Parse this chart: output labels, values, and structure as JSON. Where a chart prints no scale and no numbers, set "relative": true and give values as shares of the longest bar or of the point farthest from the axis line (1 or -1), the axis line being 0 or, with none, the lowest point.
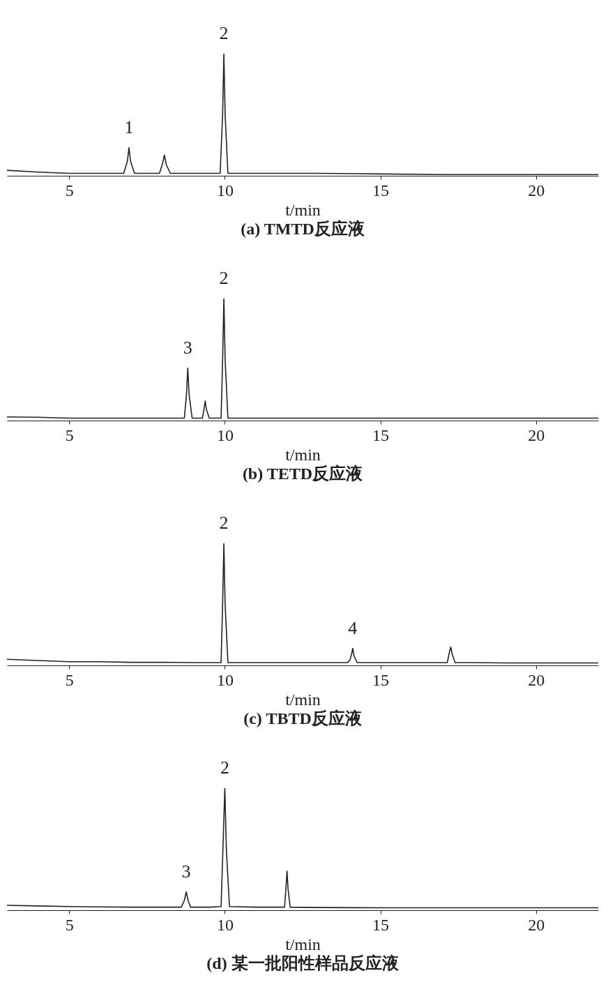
{
  "chart_data": [
    {
      "type": "line",
      "title": "(a) TMTD反应液",
      "xlabel": "t/min",
      "relative": true,
      "xlim": [
        3,
        22
      ],
      "xticks": [
        5,
        10,
        15,
        20
      ],
      "color": "#222222",
      "x": [
        3,
        4,
        5,
        6,
        6.75,
        6.87,
        6.92,
        6.97,
        7.1,
        7.5,
        7.9,
        8.0,
        8.06,
        8.12,
        8.25,
        9,
        9.85,
        9.93,
        9.97,
        10.01,
        10.1,
        11,
        13,
        15,
        17,
        19,
        21,
        22
      ],
      "values": [
        0.045,
        0.03,
        0.02,
        0.02,
        0.02,
        0.12,
        0.23,
        0.12,
        0.02,
        0.02,
        0.02,
        0.1,
        0.17,
        0.09,
        0.02,
        0.02,
        0.02,
        0.5,
        1,
        0.5,
        0.02,
        0.02,
        0.02,
        0.015,
        0.01,
        0.01,
        0.01,
        0.01
      ],
      "annotations": [
        {
          "text": "1",
          "x": 6.92,
          "y": 0.23
        },
        {
          "text": "2",
          "x": 9.97,
          "y": 1
        }
      ]
    },
    {
      "type": "line",
      "title": "(b) TETD反应液",
      "xlabel": "t/min",
      "relative": true,
      "xlim": [
        3,
        22
      ],
      "xticks": [
        5,
        10,
        15,
        20
      ],
      "color": "#222222",
      "x": [
        3,
        4,
        5,
        6,
        7,
        8,
        8.7,
        8.77,
        8.81,
        8.85,
        8.95,
        9.28,
        9.33,
        9.37,
        9.41,
        9.5,
        9.88,
        9.93,
        9.97,
        10.01,
        10.1,
        11,
        13,
        15,
        17,
        19,
        21,
        22
      ],
      "values": [
        0.03,
        0.027,
        0.02,
        0.02,
        0.02,
        0.02,
        0.02,
        0.22,
        0.43,
        0.22,
        0.02,
        0.02,
        0.09,
        0.16,
        0.09,
        0.02,
        0.02,
        0.5,
        1,
        0.5,
        0.02,
        0.02,
        0.02,
        0.02,
        0.02,
        0.02,
        0.02,
        0.02
      ],
      "annotations": [
        {
          "text": "3",
          "x": 8.81,
          "y": 0.43
        },
        {
          "text": "2",
          "x": 9.97,
          "y": 1
        }
      ]
    },
    {
      "type": "line",
      "title": "(c) TBTD反应液",
      "xlabel": "t/min",
      "relative": true,
      "xlim": [
        3,
        22
      ],
      "xticks": [
        5,
        10,
        15,
        20
      ],
      "color": "#222222",
      "x": [
        3,
        4,
        5,
        6,
        7,
        8,
        9,
        9.88,
        9.93,
        9.97,
        10.01,
        10.1,
        11,
        12,
        13,
        13.95,
        14.03,
        14.08,
        14.11,
        14.15,
        14.25,
        15,
        16,
        17.15,
        17.21,
        17.26,
        17.31,
        17.4,
        18,
        19,
        20,
        21,
        22
      ],
      "values": [
        0.05,
        0.04,
        0.03,
        0.03,
        0.025,
        0.025,
        0.023,
        0.023,
        0.5,
        1,
        0.5,
        0.023,
        0.023,
        0.023,
        0.023,
        0.023,
        0.05,
        0.1,
        0.14,
        0.08,
        0.023,
        0.023,
        0.023,
        0.023,
        0.1,
        0.15,
        0.09,
        0.023,
        0.023,
        0.02,
        0.02,
        0.02,
        0.02
      ],
      "annotations": [
        {
          "text": "2",
          "x": 9.97,
          "y": 1
        },
        {
          "text": "4",
          "x": 14.11,
          "y": 0.14
        }
      ]
    },
    {
      "type": "line",
      "title": "(d) 某一批阳性样品反应液",
      "xlabel": "t/min",
      "relative": true,
      "xlim": [
        3,
        22
      ],
      "xticks": [
        5,
        10,
        15,
        20
      ],
      "color": "#222222",
      "x": [
        3,
        4,
        5,
        6,
        7,
        8,
        8.6,
        8.7,
        8.76,
        8.82,
        8.9,
        9.5,
        9.88,
        9.94,
        10.0,
        10.05,
        10.15,
        11,
        11.92,
        11.97,
        12.0,
        12.03,
        12.1,
        13,
        15,
        17,
        19,
        21,
        22
      ],
      "values": [
        0.04,
        0.035,
        0.03,
        0.027,
        0.025,
        0.025,
        0.025,
        0.08,
        0.15,
        0.08,
        0.025,
        0.025,
        0.03,
        0.5,
        1,
        0.5,
        0.03,
        0.025,
        0.025,
        0.2,
        0.32,
        0.18,
        0.025,
        0.022,
        0.02,
        0.02,
        0.02,
        0.02,
        0.02
      ],
      "annotations": [
        {
          "text": "3",
          "x": 8.76,
          "y": 0.15
        },
        {
          "text": "2",
          "x": 10.0,
          "y": 1
        }
      ]
    }
  ]
}
